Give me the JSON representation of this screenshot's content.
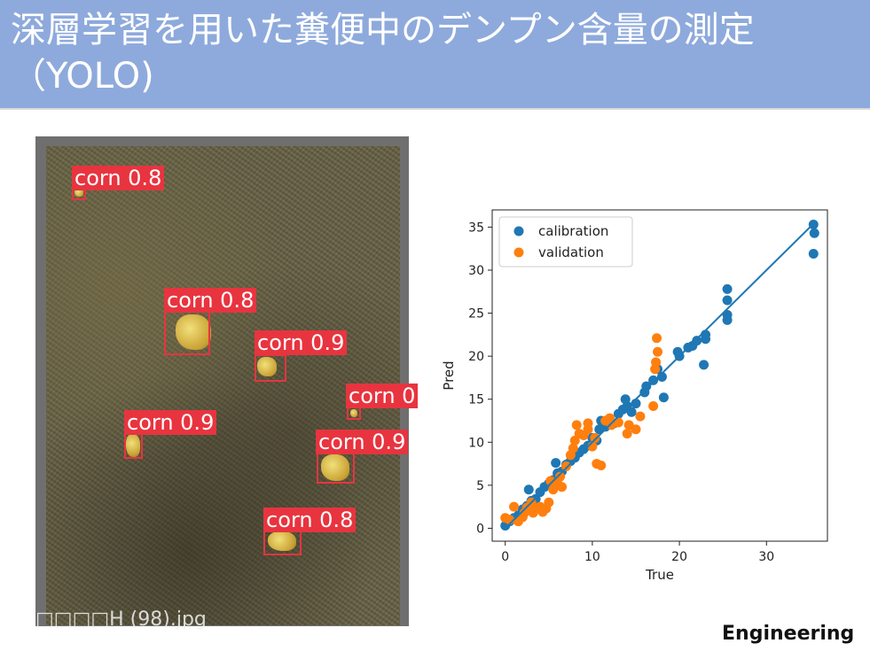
{
  "header": {
    "title": "深層学習を用いた糞便中のデンプン含量の測定\n（YOLO)"
  },
  "detection_image": {
    "filename": "□□□□H (98).jpg",
    "detections": [
      {
        "label": "corn 0.8"
      },
      {
        "label": "corn 0.8"
      },
      {
        "label": "corn 0.9"
      },
      {
        "label": "corn 0"
      },
      {
        "label": "corn 0.9"
      },
      {
        "label": "corn 0.9"
      },
      {
        "label": "corn 0.8"
      }
    ]
  },
  "footer": {
    "tag": "Engineering"
  },
  "colors": {
    "header_bg": "#8eaadc",
    "box": "#e8343f",
    "calibration": "#1f77b4",
    "validation": "#ff7f0e"
  },
  "chart_data": {
    "type": "scatter",
    "title": "",
    "xlabel": "True",
    "ylabel": "Pred",
    "xlim": [
      -1.5,
      37
    ],
    "ylim": [
      -1.5,
      37
    ],
    "xticks": [
      0,
      10,
      20,
      30
    ],
    "yticks": [
      0,
      5,
      10,
      15,
      20,
      25,
      30,
      35
    ],
    "legend_position": "top-left",
    "fit_line": {
      "from": [
        0,
        0
      ],
      "to": [
        35.5,
        35.5
      ]
    },
    "series": [
      {
        "name": "calibration",
        "color": "#1f77b4",
        "points": [
          [
            0,
            0.3
          ],
          [
            0.5,
            0.8
          ],
          [
            1,
            1.2
          ],
          [
            1.5,
            1.5
          ],
          [
            2,
            2.2
          ],
          [
            2.5,
            2.6
          ],
          [
            3,
            3.2
          ],
          [
            3.5,
            3.4
          ],
          [
            4,
            4.2
          ],
          [
            2.7,
            4.5
          ],
          [
            4.5,
            4.8
          ],
          [
            5,
            5.2
          ],
          [
            5.5,
            5.6
          ],
          [
            6,
            6.4
          ],
          [
            5.8,
            7.6
          ],
          [
            6.5,
            6.6
          ],
          [
            7,
            7.4
          ],
          [
            7.5,
            7.8
          ],
          [
            8,
            8.2
          ],
          [
            8.5,
            8.8
          ],
          [
            9,
            9.2
          ],
          [
            9.5,
            9.6
          ],
          [
            10,
            10.5
          ],
          [
            10.5,
            10.2
          ],
          [
            10.8,
            11.5
          ],
          [
            11,
            12.5
          ],
          [
            11.5,
            11.8
          ],
          [
            12,
            12.6
          ],
          [
            12.5,
            12.2
          ],
          [
            13,
            13.3
          ],
          [
            13.5,
            13.8
          ],
          [
            14,
            14.2
          ],
          [
            14.5,
            13.5
          ],
          [
            15,
            14.5
          ],
          [
            13.8,
            15
          ],
          [
            16,
            15.8
          ],
          [
            16.2,
            16.5
          ],
          [
            17,
            17.2
          ],
          [
            17.5,
            18.5
          ],
          [
            18,
            17.6
          ],
          [
            18.2,
            15.2
          ],
          [
            19.8,
            20.5
          ],
          [
            20,
            20
          ],
          [
            21,
            21
          ],
          [
            21.5,
            21.2
          ],
          [
            22,
            21.8
          ],
          [
            23,
            22
          ],
          [
            23,
            22.5
          ],
          [
            22.8,
            19
          ],
          [
            25.5,
            27.8
          ],
          [
            25.5,
            26.5
          ],
          [
            25.5,
            24.8
          ],
          [
            25.5,
            24.2
          ],
          [
            35.4,
            35.3
          ],
          [
            35.5,
            34.3
          ],
          [
            35.4,
            31.9
          ]
        ]
      },
      {
        "name": "validation",
        "color": "#ff7f0e",
        "points": [
          [
            0,
            1.2
          ],
          [
            0.5,
            1
          ],
          [
            1,
            2.5
          ],
          [
            1.5,
            0.8
          ],
          [
            2,
            1.3
          ],
          [
            2.2,
            1.8
          ],
          [
            2.5,
            2.4
          ],
          [
            3,
            3
          ],
          [
            3.2,
            1.8
          ],
          [
            3.5,
            2.2
          ],
          [
            4,
            2.5
          ],
          [
            4.3,
            1.9
          ],
          [
            4.7,
            2.3
          ],
          [
            5,
            3
          ],
          [
            5.2,
            5.5
          ],
          [
            5.5,
            4.5
          ],
          [
            6,
            5.2
          ],
          [
            6.3,
            6
          ],
          [
            6.5,
            4.8
          ],
          [
            7,
            7.2
          ],
          [
            7.5,
            8.5
          ],
          [
            7.8,
            9.3
          ],
          [
            8,
            10.2
          ],
          [
            8.5,
            11
          ],
          [
            8.2,
            12
          ],
          [
            9,
            10.8
          ],
          [
            9.5,
            11.5
          ],
          [
            9.5,
            12.2
          ],
          [
            10,
            9.5
          ],
          [
            10.3,
            10.5
          ],
          [
            10.5,
            7.5
          ],
          [
            11,
            7.3
          ],
          [
            11.5,
            12.5
          ],
          [
            12,
            12.8
          ],
          [
            12.2,
            12
          ],
          [
            13,
            12.3
          ],
          [
            14,
            11
          ],
          [
            14.2,
            12
          ],
          [
            15,
            11.5
          ],
          [
            15.5,
            13
          ],
          [
            17,
            14.2
          ],
          [
            17.2,
            18.5
          ],
          [
            17.3,
            19.3
          ],
          [
            17.5,
            20.5
          ],
          [
            17.4,
            22.1
          ]
        ]
      }
    ]
  }
}
